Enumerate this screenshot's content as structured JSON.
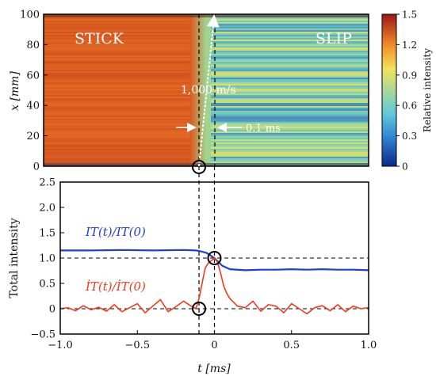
{
  "chart_data": [
    {
      "type": "heatmap",
      "xlabel": "",
      "ylabel": "x [mm]",
      "ylim": [
        0,
        100
      ],
      "xlim": [
        -1.0,
        1.0
      ],
      "yticks": [
        "0",
        "20",
        "40",
        "60",
        "80",
        "100"
      ],
      "annotations": {
        "stick": "STICK",
        "slip": "SLIP",
        "speed": "1,000 m/s",
        "interval": "0.1 ms"
      },
      "front_line": {
        "t_start": -0.1,
        "x_start": 0,
        "t_end": 0.0,
        "x_end": 100
      },
      "guide_lines_t": [
        -0.1,
        0.0
      ],
      "colorbar": {
        "label": "Relative intensity",
        "range": [
          0,
          1.5
        ],
        "ticks": [
          "0",
          "0.3",
          "0.6",
          "0.9",
          "1.2",
          "1.5"
        ]
      },
      "regions": [
        {
          "name": "STICK",
          "t_range": [
            -1.0,
            -0.1
          ],
          "relative_intensity": 1.3
        },
        {
          "name": "SLIP",
          "t_range": [
            0.0,
            1.0
          ],
          "relative_intensity": 0.6
        }
      ]
    },
    {
      "type": "line",
      "xlabel": "t [ms]",
      "ylabel": "Total intensity",
      "xlim": [
        -1.0,
        1.0
      ],
      "ylim": [
        -0.5,
        2.5
      ],
      "xticks": [
        "−1.0",
        "−0.5",
        "0",
        "0.5",
        "1.0"
      ],
      "yticks": [
        "−0.5",
        "0",
        "0.5",
        "1.0",
        "1.5",
        "2.0",
        "2.5"
      ],
      "reference_lines_y": [
        0,
        1.0
      ],
      "markers": [
        [
          -0.1,
          0
        ],
        [
          0.0,
          1.0
        ]
      ],
      "series": [
        {
          "name": "IT(t)/IT(0)",
          "color": "#1f3fd0",
          "x": [
            -1.0,
            -0.8,
            -0.6,
            -0.4,
            -0.2,
            -0.12,
            -0.1,
            -0.05,
            0.0,
            0.05,
            0.1,
            0.2,
            0.3,
            0.4,
            0.5,
            0.6,
            0.7,
            0.8,
            0.9,
            1.0
          ],
          "values": [
            1.15,
            1.15,
            1.16,
            1.15,
            1.16,
            1.15,
            1.14,
            1.1,
            1.0,
            0.85,
            0.78,
            0.76,
            0.77,
            0.77,
            0.78,
            0.77,
            0.78,
            0.77,
            0.77,
            0.76
          ]
        },
        {
          "name": "İT(t)/İT(0)",
          "color": "#f03a1a",
          "x": [
            -1.0,
            -0.95,
            -0.9,
            -0.85,
            -0.8,
            -0.75,
            -0.7,
            -0.65,
            -0.6,
            -0.55,
            -0.5,
            -0.45,
            -0.4,
            -0.35,
            -0.3,
            -0.25,
            -0.2,
            -0.15,
            -0.12,
            -0.1,
            -0.08,
            -0.06,
            -0.04,
            -0.02,
            0.0,
            0.02,
            0.04,
            0.06,
            0.08,
            0.1,
            0.15,
            0.2,
            0.25,
            0.3,
            0.35,
            0.4,
            0.45,
            0.5,
            0.55,
            0.6,
            0.65,
            0.7,
            0.75,
            0.8,
            0.85,
            0.9,
            0.95,
            1.0
          ],
          "values": [
            0.0,
            0.02,
            -0.04,
            0.06,
            -0.02,
            0.03,
            -0.05,
            0.08,
            -0.06,
            0.02,
            0.1,
            -0.08,
            0.05,
            0.18,
            -0.06,
            0.04,
            0.15,
            0.05,
            0.0,
            0.2,
            0.5,
            0.8,
            0.9,
            0.95,
            1.0,
            0.92,
            0.7,
            0.45,
            0.3,
            0.2,
            0.05,
            0.02,
            0.15,
            -0.05,
            0.08,
            0.05,
            -0.08,
            0.1,
            0.0,
            -0.1,
            0.02,
            0.06,
            -0.04,
            0.08,
            -0.06,
            0.05,
            0.0,
            0.02
          ]
        }
      ]
    }
  ]
}
